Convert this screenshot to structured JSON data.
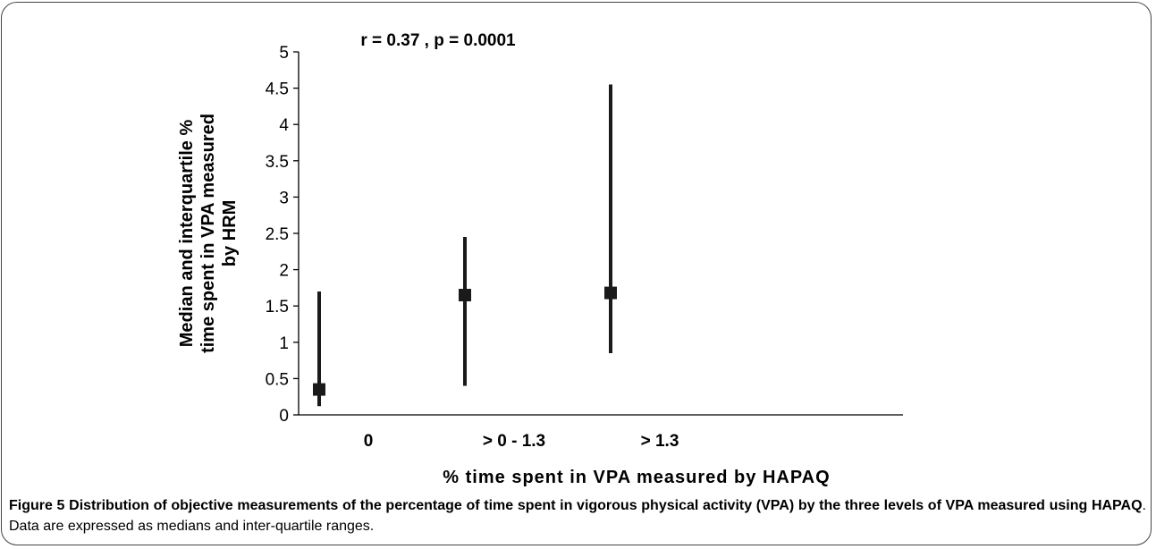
{
  "chart_data": {
    "type": "errorbar",
    "title": "r = 0.37 , p = 0.0001",
    "ylabel_lines": [
      "Median and interquartile %",
      "time spent in VPA measured",
      "by HRM"
    ],
    "xlabel": "% time spent in VPA measured by HAPAQ",
    "ylim": [
      0,
      5
    ],
    "yticks": [
      "0",
      "0.5",
      "1",
      "1.5",
      "2",
      "2.5",
      "3",
      "3.5",
      "4",
      "4.5",
      "5"
    ],
    "yticks_values": [
      0,
      0.5,
      1,
      1.5,
      2,
      2.5,
      3,
      3.5,
      4,
      4.5,
      5
    ],
    "categories": [
      "0",
      "> 0 - 1.3",
      "> 1.3"
    ],
    "median": [
      0.35,
      1.65,
      1.68
    ],
    "q1": [
      0.12,
      0.4,
      0.85
    ],
    "q3": [
      1.7,
      2.45,
      4.55
    ],
    "grid": false,
    "marker_color": "#1a1a1a",
    "line_color": "#1a1a1a"
  },
  "caption": {
    "label": "Figure 5",
    "bold_text": "Distribution of objective measurements of the percentage of time spent in vigorous physical activity (VPA) by the three levels of VPA measured using HAPAQ",
    "rest_text": ". Data are expressed as medians and inter-quartile ranges."
  }
}
